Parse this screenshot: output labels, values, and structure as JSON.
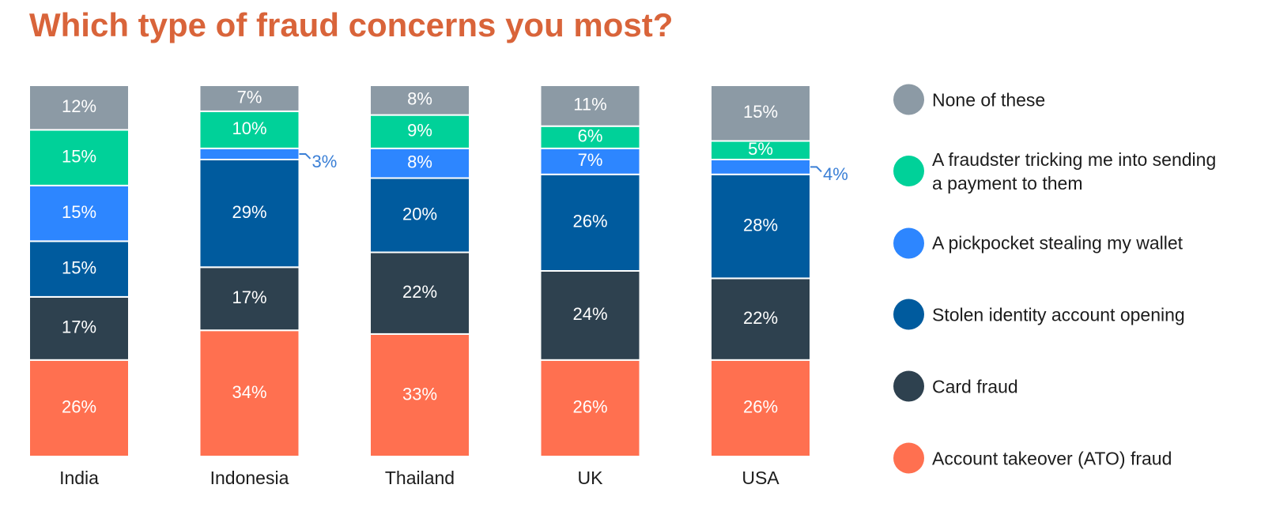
{
  "chart_data": {
    "type": "stacked-bar",
    "title": "Which type of fraud concerns you most?",
    "categories": [
      "India",
      "Indonesia",
      "Thailand",
      "UK",
      "USA"
    ],
    "ylim": [
      0,
      100
    ],
    "series": [
      {
        "name": "Account takeover (ATO) fraud",
        "color": "#ff7050",
        "values": [
          26,
          34,
          33,
          26,
          26
        ],
        "value_labels": [
          "26%",
          "34%",
          "33%",
          "26%",
          "26%"
        ]
      },
      {
        "name": "Card fraud",
        "color": "#2e414f",
        "values": [
          17,
          17,
          22,
          24,
          22
        ],
        "value_labels": [
          "17%",
          "17%",
          "22%",
          "24%",
          "22%"
        ]
      },
      {
        "name": "Stolen identity account opening",
        "color": "#005b9e",
        "values": [
          15,
          29,
          20,
          26,
          28
        ],
        "value_labels": [
          "15%",
          "29%",
          "20%",
          "26%",
          "28%"
        ]
      },
      {
        "name": "A pickpocket stealing my wallet",
        "color": "#2d86ff",
        "values": [
          15,
          3,
          8,
          7,
          4
        ],
        "value_labels": [
          "15%",
          "3%",
          "8%",
          "7%",
          "4%"
        ]
      },
      {
        "name": "A fraudster tricking me into sending a payment to them",
        "color": "#00d199",
        "values": [
          15,
          10,
          9,
          6,
          5
        ],
        "value_labels": [
          "15%",
          "10%",
          "9%",
          "6%",
          "5%"
        ]
      },
      {
        "name": "None of these",
        "color": "#8c9aa5",
        "values": [
          12,
          7,
          8,
          11,
          15
        ],
        "value_labels": [
          "12%",
          "7%",
          "8%",
          "11%",
          "15%"
        ]
      }
    ]
  }
}
